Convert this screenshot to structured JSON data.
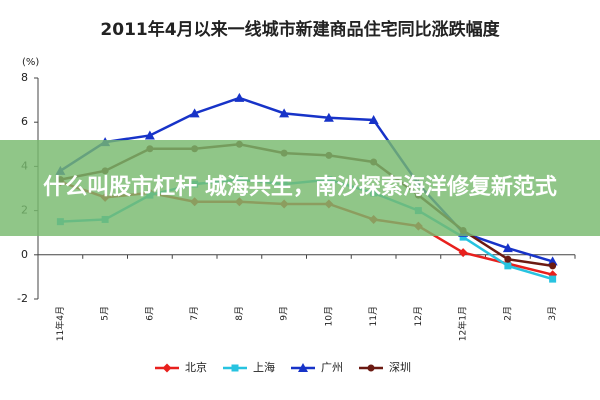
{
  "chart_data": {
    "type": "line",
    "title": "2011年4月以来一线城市新建商品住宅同比涨跌幅度",
    "y_label": "(%)",
    "categories": [
      "11年4月",
      "5月",
      "6月",
      "7月",
      "8月",
      "9月",
      "10月",
      "11月",
      "12月",
      "12年1月",
      "2月",
      "3月"
    ],
    "series": [
      {
        "name": "北京",
        "color": "#e8201d",
        "marker": "diamond",
        "values": [
          3.3,
          2.6,
          2.8,
          2.4,
          2.4,
          2.3,
          2.3,
          1.6,
          1.3,
          0.1,
          -0.4,
          -0.9
        ]
      },
      {
        "name": "上海",
        "color": "#27c3e0",
        "marker": "square",
        "values": [
          1.5,
          1.6,
          2.7,
          3.2,
          3.4,
          3.2,
          3.4,
          2.8,
          2.0,
          0.8,
          -0.5,
          -1.1
        ]
      },
      {
        "name": "广州",
        "color": "#1733c8",
        "marker": "triangle",
        "values": [
          3.8,
          5.1,
          5.4,
          6.4,
          7.1,
          6.4,
          6.2,
          6.1,
          3.2,
          1.0,
          0.3,
          -0.3
        ]
      },
      {
        "name": "深圳",
        "color": "#6b1a12",
        "marker": "circle",
        "values": [
          3.4,
          3.8,
          4.8,
          4.8,
          5.0,
          4.6,
          4.5,
          4.2,
          2.7,
          1.1,
          -0.2,
          -0.5
        ]
      }
    ],
    "ylim": [
      -2,
      8
    ],
    "yticks": [
      -2,
      0,
      2,
      4,
      6,
      8
    ],
    "grid": false,
    "legend": "bottom"
  },
  "overlay": {
    "text": "什么叫股市杠杆 城海共生，南沙探索海洋修复新范式"
  }
}
